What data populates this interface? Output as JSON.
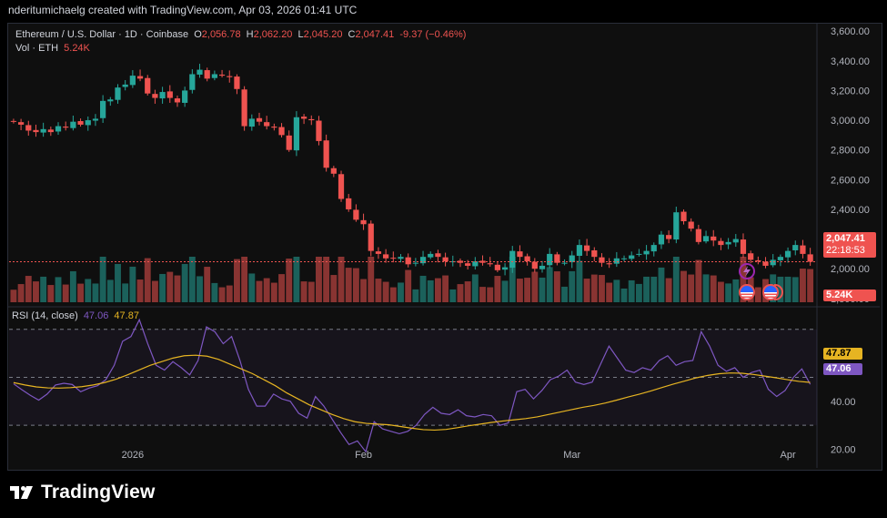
{
  "header": {
    "text": "nderitumichaelg created with TradingView.com, Apr 03, 2026 01:41 UTC"
  },
  "legend": {
    "symbol": "Ethereum / U.S. Dollar · 1D · Coinbase",
    "o_label": "O",
    "o": "2,056.78",
    "h_label": "H",
    "h": "2,062.20",
    "l_label": "L",
    "l": "2,045.20",
    "c_label": "C",
    "c": "2,047.41",
    "change": "-9.37 (−0.46%)",
    "vol_label": "Vol · ETH",
    "vol": "5.24K"
  },
  "rsi_legend": {
    "label": "RSI (14, close)",
    "rsi": "47.06",
    "ma": "47.87"
  },
  "price_tag": {
    "price": "2,047.41",
    "countdown": "22:18:53"
  },
  "vol_tag": "5.24K",
  "rsi_tags": {
    "ma": "47.87",
    "rsi": "47.06"
  },
  "footer": {
    "brand": "TradingView"
  },
  "colors": {
    "up": "#26a69a",
    "down": "#ef5350",
    "rsi": "#7e57c2",
    "rsi_ma": "#e6b422",
    "bg": "#0f0f0f"
  },
  "chart_data": [
    {
      "type": "candlestick",
      "title": "Ethereum / U.S. Dollar · 1D · Coinbase",
      "y_ticks": [
        "1,800.00",
        "2,000.00",
        "2,200.00",
        "2,400.00",
        "2,600.00",
        "2,800.00",
        "3,000.00",
        "3,200.00",
        "3,400.00",
        "3,600.00"
      ],
      "y_tick_values": [
        1800,
        2000,
        2200,
        2400,
        2600,
        2800,
        3000,
        3200,
        3400,
        3600
      ],
      "ylim": [
        1750,
        3650
      ],
      "x_ticks": [
        "2026",
        "Feb",
        "Mar",
        "Apr"
      ],
      "x_tick_index": [
        16,
        47,
        75,
        104
      ],
      "series": [
        {
          "name": "Ethereum / U.S. Dollar",
          "candles_close": [
            2990,
            2970,
            2930,
            2920,
            2940,
            2920,
            2960,
            2950,
            2990,
            2970,
            3000,
            3010,
            3130,
            3140,
            3220,
            3240,
            3300,
            3280,
            3180,
            3150,
            3190,
            3150,
            3120,
            3200,
            3310,
            3340,
            3280,
            3310,
            3300,
            3290,
            3210,
            2960,
            3010,
            2990,
            2960,
            2950,
            2900,
            2800,
            3020,
            3010,
            3000,
            2860,
            2680,
            2640,
            2470,
            2400,
            2330,
            2300,
            2120,
            2100,
            2070,
            2070,
            2080,
            2030,
            2040,
            2080,
            2100,
            2080,
            2050,
            2050,
            2040,
            2020,
            2050,
            2040,
            2030,
            1990,
            2010,
            2120,
            2080,
            2050,
            2000,
            2020,
            2100,
            2040,
            2040,
            2090,
            2160,
            2120,
            2080,
            2040,
            2030,
            2070,
            2070,
            2090,
            2100,
            2120,
            2160,
            2230,
            2200,
            2380,
            2320,
            2270,
            2180,
            2220,
            2190,
            2160,
            2180,
            2200,
            2100,
            2060,
            2050,
            2020,
            2060,
            2080,
            2120,
            2160,
            2100,
            2047
          ]
        },
        {
          "name": "Vol · ETH"
        }
      ]
    },
    {
      "type": "line",
      "title": "RSI (14, close)",
      "y_ticks": [
        "20.00",
        "40.00",
        "60.00"
      ],
      "y_tick_values": [
        20,
        40,
        60
      ],
      "bands": [
        30,
        50,
        70
      ],
      "ylim": [
        13,
        79
      ],
      "series": [
        {
          "name": "RSI",
          "values": [
            47.3,
            44.8,
            42.5,
            40.5,
            43.0,
            46.8,
            47.5,
            47.0,
            44.0,
            45.5,
            46.5,
            49.0,
            55.0,
            65.0,
            67.0,
            74.0,
            64.0,
            55.0,
            53.0,
            56.5,
            54.0,
            51.0,
            57.0,
            71.0,
            69.0,
            64.0,
            67.0,
            57.0,
            45.0,
            38.0,
            38.0,
            43.0,
            41.0,
            40.0,
            35.0,
            33.0,
            42.0,
            38.0,
            32.5,
            27.0,
            22.0,
            23.5,
            19.0,
            31.5,
            28.5,
            27.5,
            26.5,
            27.5,
            30.0,
            34.5,
            37.5,
            35.0,
            34.5,
            36.5,
            34.0,
            33.5,
            34.5,
            34.0,
            30.0,
            31.0,
            44.0,
            45.0,
            41.0,
            44.5,
            49.0,
            50.5,
            53.0,
            48.0,
            47.0,
            48.0,
            55.5,
            63.0,
            58.0,
            53.0,
            52.0,
            54.0,
            53.0,
            57.0,
            59.0,
            55.0,
            56.5,
            57.0,
            69.0,
            63.0,
            55.0,
            52.5,
            54.0,
            50.0,
            52.0,
            53.0,
            45.0,
            42.0,
            44.5,
            50.0,
            53.5,
            47.06
          ]
        },
        {
          "name": "RSI MA",
          "values": [
            47.8,
            46.8,
            46.0,
            45.6,
            45.5,
            45.7,
            46.1,
            46.8,
            47.8,
            49.2,
            51.0,
            53.0,
            55.0,
            56.5,
            58.0,
            59.0,
            59.2,
            58.8,
            57.5,
            55.5,
            53.5,
            51.5,
            49.0,
            46.5,
            43.5,
            41.0,
            38.5,
            36.5,
            34.5,
            32.8,
            31.5,
            30.8,
            30.5,
            30.2,
            29.5,
            28.8,
            28.2,
            28.0,
            28.3,
            29.0,
            29.8,
            30.5,
            31.2,
            31.8,
            32.3,
            32.8,
            33.5,
            34.5,
            35.5,
            36.5,
            37.5,
            38.3,
            39.3,
            40.5,
            41.8,
            43.0,
            44.3,
            45.8,
            47.2,
            48.5,
            49.8,
            50.8,
            51.5,
            51.8,
            51.7,
            51.2,
            50.5,
            49.8,
            49.0,
            48.3,
            47.87
          ]
        }
      ]
    }
  ]
}
